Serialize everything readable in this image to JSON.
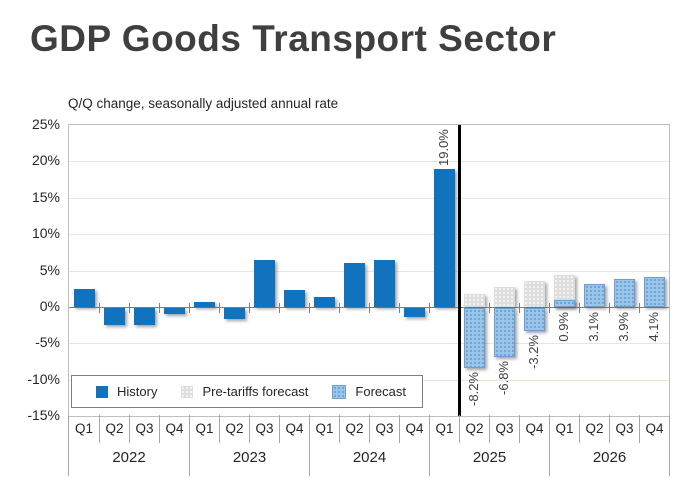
{
  "title": "GDP Goods Transport Sector",
  "subtitle": "Q/Q change, seasonally adjusted annual rate",
  "legend": {
    "history": "History",
    "pre_tariffs": "Pre-tariffs forecast",
    "forecast": "Forecast"
  },
  "colors": {
    "history": "#1172BD",
    "pre_tariffs_base": "#DEDEDE",
    "forecast_base": "#9AC4E8",
    "forecast_dot": "#5B9BD5",
    "separator": "#000000",
    "gridline": "#E9E5D9",
    "axis_line": "#808080",
    "plot_border": "#BFBFBF",
    "axis_text": "#262626",
    "data_label_text": "#404040"
  },
  "chart_data": {
    "type": "bar",
    "title": "GDP Goods Transport Sector",
    "subtitle": "Q/Q change, seasonally adjusted annual rate",
    "ylim": [
      -15,
      25
    ],
    "y_tick_step": 5,
    "y_ticks": [
      "25%",
      "20%",
      "15%",
      "10%",
      "5%",
      "0%",
      "-5%",
      "-10%",
      "-15%"
    ],
    "grid": "horizontal",
    "legend_position": "bottom-left-inside",
    "quarters": [
      "Q1",
      "Q2",
      "Q3",
      "Q4",
      "Q1",
      "Q2",
      "Q3",
      "Q4",
      "Q1",
      "Q2",
      "Q3",
      "Q4",
      "Q1",
      "Q2",
      "Q3",
      "Q4",
      "Q1",
      "Q2",
      "Q3",
      "Q4"
    ],
    "years": [
      "2022",
      "2023",
      "2024",
      "2025",
      "2026"
    ],
    "categories": [
      "2022 Q1",
      "2022 Q2",
      "2022 Q3",
      "2022 Q4",
      "2023 Q1",
      "2023 Q2",
      "2023 Q3",
      "2023 Q4",
      "2024 Q1",
      "2024 Q2",
      "2024 Q3",
      "2024 Q4",
      "2025 Q1",
      "2025 Q2",
      "2025 Q3",
      "2025 Q4",
      "2026 Q1",
      "2026 Q2",
      "2026 Q3",
      "2026 Q4"
    ],
    "series": [
      {
        "name": "Pre-tariffs forecast",
        "key": "pre_tariffs",
        "values": [
          null,
          null,
          null,
          null,
          null,
          null,
          null,
          null,
          null,
          null,
          null,
          null,
          null,
          1.8,
          2.8,
          3.5,
          4.4,
          null,
          null,
          null
        ]
      },
      {
        "name": "History",
        "key": "history",
        "values": [
          2.4,
          -2.4,
          -2.3,
          -0.8,
          0.7,
          -1.5,
          6.4,
          2.3,
          1.3,
          6.0,
          6.4,
          -1.2,
          19.0,
          null,
          null,
          null,
          null,
          null,
          null,
          null
        ]
      },
      {
        "name": "Forecast",
        "key": "forecast",
        "values": [
          null,
          null,
          null,
          null,
          null,
          null,
          null,
          null,
          null,
          null,
          null,
          null,
          null,
          -8.2,
          -6.8,
          -3.2,
          0.9,
          3.1,
          3.9,
          4.1
        ]
      }
    ],
    "data_labels": [
      {
        "index": 12,
        "series": "History",
        "text": "19.0%",
        "value": 19.0,
        "placement": "above"
      },
      {
        "index": 13,
        "series": "Forecast",
        "text": "-8.2%",
        "value": -8.2,
        "placement": "below_bar"
      },
      {
        "index": 14,
        "series": "Forecast",
        "text": "-6.8%",
        "value": -6.8,
        "placement": "below_bar"
      },
      {
        "index": 15,
        "series": "Forecast",
        "text": "-3.2%",
        "value": -3.2,
        "placement": "below_bar"
      },
      {
        "index": 16,
        "series": "Forecast",
        "text": "0.9%",
        "value": 0.9,
        "placement": "below_zero"
      },
      {
        "index": 17,
        "series": "Forecast",
        "text": "3.1%",
        "value": 3.1,
        "placement": "below_zero"
      },
      {
        "index": 18,
        "series": "Forecast",
        "text": "3.9%",
        "value": 3.9,
        "placement": "below_zero"
      },
      {
        "index": 19,
        "series": "Forecast",
        "text": "4.1%",
        "value": 4.1,
        "placement": "below_zero"
      }
    ],
    "separator_after_index": 12
  }
}
